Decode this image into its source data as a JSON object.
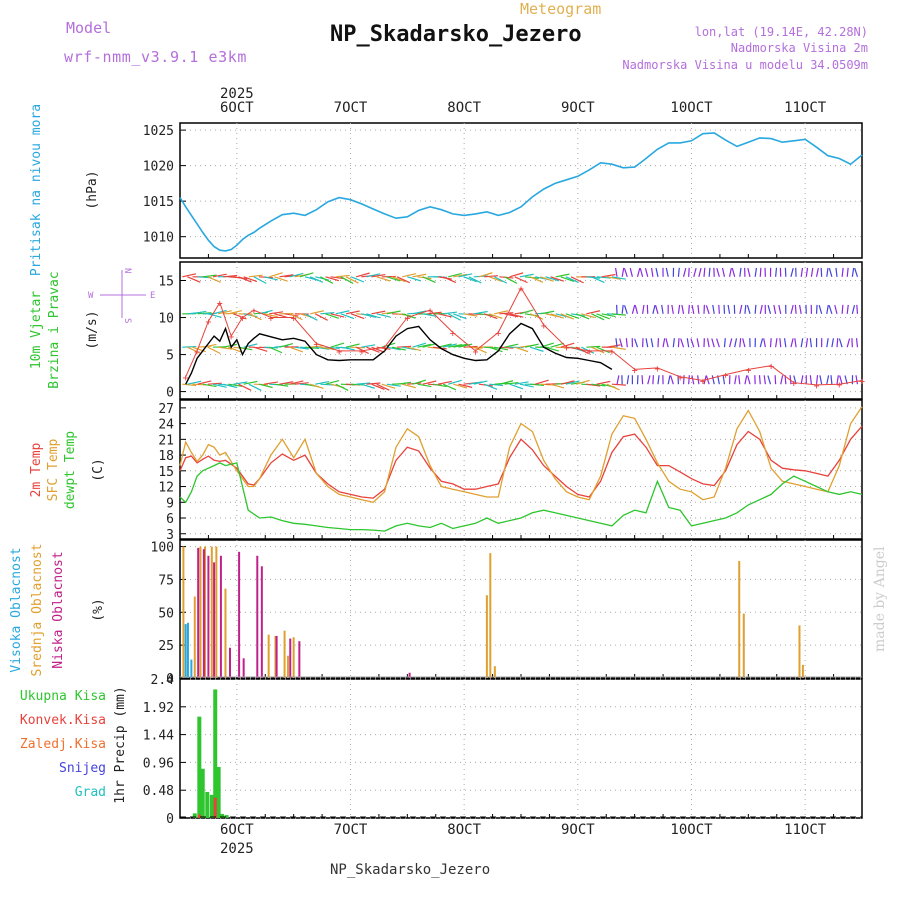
{
  "header": {
    "model_label": "Model",
    "model_name": "wrf-nmm_v3.9.1 e3km",
    "meteogram_label": "Meteogram",
    "station": "NP_Skadarsko_Jezero",
    "lonlat": "lon,lat (19.14E, 42.28N)",
    "elevation": "Nadmorska Visina 2m",
    "elevation_model": "Nadmorska Visina u modelu 34.0509m"
  },
  "footer": {
    "station": "NP_Skadarsko_Jezero",
    "credit": "made by Angel"
  },
  "colors": {
    "pressure": "#29a8e0",
    "temp2m": "#e8423c",
    "sfc": "#e0a030",
    "dewpt": "#2ec52e",
    "speed": "#000000",
    "high": "#29a8e0",
    "mid": "#e0a030",
    "low": "#c0208a",
    "total": "#2ec52e",
    "conv": "#e8423c",
    "snow": "#4444dd",
    "grad": "#20c0c0",
    "purple": "#b46fdc"
  },
  "chart_data": [
    {
      "type": "line",
      "panel": "pressure",
      "title": "Pritisak na nivou mora",
      "ylabel": "(hPa)",
      "ylim": [
        1007,
        1026
      ],
      "yticks": [
        1010,
        1015,
        1020,
        1025
      ],
      "x_range_days": [
        5.5,
        11.5
      ],
      "year": "2025",
      "dates": [
        {
          "x": 6,
          "label": "6OCT"
        },
        {
          "x": 7,
          "label": "7OCT"
        },
        {
          "x": 8,
          "label": "8OCT"
        },
        {
          "x": 9,
          "label": "9OCT"
        },
        {
          "x": 10,
          "label": "10OCT"
        },
        {
          "x": 11,
          "label": "11OCT"
        }
      ],
      "series": [
        {
          "name": "Pritisak",
          "x": [
            5.5,
            5.55,
            5.6,
            5.65,
            5.7,
            5.75,
            5.8,
            5.85,
            5.9,
            5.95,
            6.0,
            6.05,
            6.1,
            6.15,
            6.2,
            6.3,
            6.4,
            6.5,
            6.6,
            6.7,
            6.8,
            6.9,
            7.0,
            7.1,
            7.2,
            7.3,
            7.4,
            7.5,
            7.6,
            7.7,
            7.8,
            7.9,
            8.0,
            8.1,
            8.2,
            8.3,
            8.4,
            8.5,
            8.6,
            8.7,
            8.8,
            8.9,
            9.0,
            9.1,
            9.2,
            9.3,
            9.4,
            9.5,
            9.6,
            9.7,
            9.8,
            9.9,
            10.0,
            10.1,
            10.2,
            10.3,
            10.4,
            10.5,
            10.6,
            10.7,
            10.8,
            10.9,
            11.0,
            11.1,
            11.2,
            11.3,
            11.4,
            11.5
          ],
          "values": [
            1015.5,
            1014.2,
            1013.0,
            1011.8,
            1010.6,
            1009.5,
            1008.6,
            1008.1,
            1008.0,
            1008.2,
            1008.8,
            1009.6,
            1010.2,
            1010.6,
            1011.2,
            1012.2,
            1013.1,
            1013.3,
            1013.0,
            1013.8,
            1014.9,
            1015.5,
            1015.2,
            1014.6,
            1013.9,
            1013.2,
            1012.6,
            1012.8,
            1013.7,
            1014.2,
            1013.8,
            1013.2,
            1013.0,
            1013.2,
            1013.5,
            1013.0,
            1013.4,
            1014.2,
            1015.6,
            1016.7,
            1017.5,
            1018.0,
            1018.5,
            1019.4,
            1020.4,
            1020.2,
            1019.7,
            1019.8,
            1021.0,
            1022.3,
            1023.2,
            1023.2,
            1023.5,
            1024.5,
            1024.6,
            1023.6,
            1022.7,
            1023.3,
            1023.9,
            1023.8,
            1023.3,
            1023.5,
            1023.7,
            1022.6,
            1021.4,
            1021.0,
            1020.2,
            1021.5
          ]
        }
      ]
    },
    {
      "type": "line",
      "panel": "wind",
      "title": "10m Vjetar Brzina i Pravac",
      "ylabel": "(m/s)",
      "ylim": [
        -1,
        17.5
      ],
      "yticks": [
        0,
        5,
        10,
        15
      ],
      "compass": {
        "n": "N",
        "s": "S",
        "e": "E",
        "w": "W"
      },
      "series": [
        {
          "name": "speed",
          "x": [
            5.55,
            5.6,
            5.65,
            5.7,
            5.75,
            5.8,
            5.85,
            5.9,
            5.95,
            6.0,
            6.05,
            6.1,
            6.15,
            6.2,
            6.3,
            6.4,
            6.5,
            6.6,
            6.7,
            6.8,
            6.9,
            7.0,
            7.2,
            7.3,
            7.4,
            7.5,
            7.6,
            7.7,
            7.8,
            7.9,
            8.0,
            8.1,
            8.2,
            8.3,
            8.4,
            8.5,
            8.6,
            8.7,
            8.8,
            8.9,
            9.0,
            9.1,
            9.2,
            9.3
          ],
          "values": [
            1.0,
            2.5,
            4.5,
            5.5,
            6.5,
            7.5,
            6.8,
            8.5,
            6.0,
            7.0,
            5.0,
            6.5,
            7.2,
            7.8,
            7.4,
            7.0,
            7.2,
            6.8,
            5.0,
            4.3,
            4.2,
            4.3,
            4.3,
            5.5,
            7.5,
            8.5,
            8.8,
            7.0,
            5.8,
            5.0,
            4.5,
            4.2,
            4.3,
            5.5,
            7.8,
            9.2,
            8.5,
            6.0,
            5.2,
            4.6,
            4.5,
            4.2,
            3.9,
            3.0
          ]
        },
        {
          "name": "gust",
          "x": [
            5.55,
            5.65,
            5.75,
            5.85,
            5.95,
            6.05,
            6.15,
            6.3,
            6.5,
            6.7,
            6.9,
            7.1,
            7.3,
            7.5,
            7.7,
            7.9,
            8.1,
            8.3,
            8.5,
            8.7,
            8.9,
            9.1,
            9.3,
            9.5,
            9.7,
            9.9,
            10.1,
            10.3,
            10.5,
            10.7,
            10.9,
            11.1,
            11.3,
            11.5
          ],
          "values": [
            2.0,
            5.5,
            9.5,
            12.0,
            7.5,
            10.0,
            11.0,
            10.0,
            10.0,
            6.5,
            5.5,
            5.5,
            6.0,
            10.0,
            11.0,
            8.0,
            5.5,
            8.0,
            14.0,
            9.0,
            6.0,
            5.5,
            5.5,
            3.0,
            3.2,
            2.0,
            1.5,
            2.3,
            3.0,
            3.5,
            1.2,
            0.9,
            1.0,
            1.5
          ]
        }
      ]
    },
    {
      "type": "line",
      "panel": "temperature",
      "title": "2m Temp / SFC Temp / dewpt Temp",
      "labels": [
        "2m Temp",
        "SFC Temp",
        "dewpt Temp"
      ],
      "ylabel": "(C)",
      "ylim": [
        2,
        28.5
      ],
      "yticks": [
        3,
        6,
        9,
        12,
        15,
        18,
        21,
        24,
        27
      ],
      "series": [
        {
          "name": "2m Temp",
          "x": [
            5.5,
            5.55,
            5.6,
            5.65,
            5.7,
            5.75,
            5.8,
            5.85,
            5.9,
            6.0,
            6.1,
            6.15,
            6.2,
            6.3,
            6.4,
            6.5,
            6.6,
            6.7,
            6.8,
            6.9,
            7.0,
            7.1,
            7.2,
            7.3,
            7.4,
            7.5,
            7.6,
            7.7,
            7.8,
            7.9,
            8.0,
            8.1,
            8.2,
            8.3,
            8.4,
            8.5,
            8.6,
            8.7,
            8.8,
            8.9,
            9.0,
            9.1,
            9.2,
            9.3,
            9.4,
            9.5,
            9.6,
            9.7,
            9.8,
            9.9,
            10.0,
            10.1,
            10.2,
            10.3,
            10.4,
            10.5,
            10.6,
            10.7,
            10.8,
            10.9,
            11.0,
            11.1,
            11.2,
            11.3,
            11.4,
            11.5
          ],
          "values": [
            15,
            17.5,
            17.8,
            16.5,
            17.2,
            17.8,
            17.0,
            16.8,
            17.0,
            15.5,
            12.5,
            12.3,
            13.5,
            16.5,
            18.2,
            17.0,
            18.0,
            14.5,
            12.5,
            11.0,
            10.5,
            10.0,
            9.8,
            11.5,
            17.0,
            19.5,
            18.8,
            15.5,
            13.0,
            12.5,
            11.5,
            11.5,
            12.0,
            12.5,
            17.5,
            21.0,
            19.0,
            16.0,
            14.0,
            12.0,
            10.5,
            10.0,
            13.0,
            18.5,
            21.5,
            22.0,
            19.5,
            16.0,
            16.0,
            14.8,
            13.5,
            12.5,
            12.2,
            15.0,
            20.0,
            22.5,
            21.0,
            17.0,
            15.5,
            15.2,
            15.0,
            14.5,
            14.0,
            17.0,
            21.0,
            23.5
          ]
        },
        {
          "name": "SFC Temp",
          "x": [
            5.5,
            5.55,
            5.6,
            5.65,
            5.7,
            5.75,
            5.8,
            5.85,
            5.9,
            6.0,
            6.1,
            6.15,
            6.2,
            6.3,
            6.4,
            6.5,
            6.6,
            6.7,
            6.8,
            6.9,
            7.0,
            7.1,
            7.2,
            7.3,
            7.4,
            7.5,
            7.6,
            7.7,
            7.8,
            7.9,
            8.0,
            8.1,
            8.2,
            8.3,
            8.4,
            8.5,
            8.6,
            8.7,
            8.8,
            8.9,
            9.0,
            9.1,
            9.2,
            9.3,
            9.4,
            9.5,
            9.6,
            9.7,
            9.8,
            9.9,
            10.0,
            10.1,
            10.2,
            10.3,
            10.4,
            10.5,
            10.6,
            10.7,
            10.8,
            10.9,
            11.0,
            11.1,
            11.2,
            11.3,
            11.4,
            11.5
          ],
          "values": [
            16,
            20.5,
            18.5,
            16.8,
            18.0,
            20.0,
            19.5,
            18.0,
            18.5,
            15.0,
            12.0,
            12.0,
            13.5,
            18.0,
            21.0,
            17.5,
            21.0,
            14.5,
            12.0,
            10.5,
            10.0,
            9.5,
            9.0,
            11.0,
            19.5,
            23.0,
            21.5,
            16.0,
            12.0,
            11.5,
            11.0,
            10.5,
            10.0,
            10.0,
            19.5,
            24.0,
            22.5,
            17.0,
            13.5,
            11.0,
            10.0,
            9.5,
            14.0,
            22.0,
            25.5,
            25.0,
            21.0,
            16.5,
            13.0,
            11.5,
            11.0,
            9.5,
            10.0,
            15.5,
            23.0,
            26.5,
            22.5,
            15.5,
            13.0,
            12.5,
            12.0,
            11.5,
            11.0,
            16.0,
            24.0,
            27.2
          ]
        },
        {
          "name": "dewpt Temp",
          "x": [
            5.5,
            5.55,
            5.6,
            5.65,
            5.7,
            5.75,
            5.8,
            5.85,
            5.9,
            6.0,
            6.1,
            6.2,
            6.3,
            6.4,
            6.5,
            6.6,
            6.7,
            6.8,
            6.9,
            7.0,
            7.1,
            7.2,
            7.3,
            7.4,
            7.5,
            7.6,
            7.7,
            7.8,
            7.9,
            8.0,
            8.1,
            8.2,
            8.3,
            8.4,
            8.5,
            8.6,
            8.7,
            8.8,
            8.9,
            9.0,
            9.1,
            9.2,
            9.3,
            9.4,
            9.5,
            9.6,
            9.7,
            9.8,
            9.9,
            10.0,
            10.1,
            10.2,
            10.3,
            10.4,
            10.5,
            10.6,
            10.7,
            10.8,
            10.9,
            11.0,
            11.1,
            11.2,
            11.3,
            11.4,
            11.5
          ],
          "values": [
            10,
            9.0,
            11.0,
            14.0,
            15.0,
            15.5,
            16.0,
            16.5,
            16.0,
            16.5,
            7.5,
            6.0,
            6.2,
            5.5,
            5.0,
            4.8,
            4.5,
            4.2,
            4.0,
            3.8,
            3.8,
            3.7,
            3.5,
            4.5,
            5.0,
            4.5,
            4.2,
            5.0,
            4.0,
            4.5,
            5.0,
            6.0,
            5.0,
            5.5,
            6.0,
            7.0,
            7.5,
            7.0,
            6.5,
            6.0,
            5.5,
            5.0,
            4.5,
            6.5,
            7.5,
            7.0,
            13.0,
            8.0,
            7.5,
            4.5,
            5.0,
            5.5,
            6.0,
            7.0,
            8.5,
            9.5,
            10.5,
            12.5,
            14.0,
            13.0,
            12.0,
            11.0,
            10.5,
            11.0,
            10.5
          ]
        }
      ]
    },
    {
      "type": "bar",
      "panel": "clouds",
      "labels": [
        "Visoka Oblacnost",
        "Srednja Oblacnost",
        "Niska Oblacnost"
      ],
      "ylabel": "(%)",
      "ylim": [
        0,
        105
      ],
      "yticks": [
        0,
        25,
        50,
        75,
        100
      ],
      "series": [
        {
          "name": "Visoka",
          "x": [
            5.55,
            5.57,
            5.6
          ],
          "values": [
            41,
            42,
            14
          ]
        },
        {
          "name": "Srednja",
          "x": [
            5.53,
            5.63,
            5.68,
            5.72,
            5.78,
            5.82,
            5.9,
            6.28,
            6.34,
            6.42,
            6.45,
            6.5,
            8.2,
            8.23,
            8.27,
            10.42,
            10.46,
            10.95,
            10.98
          ],
          "values": [
            100,
            62,
            100,
            100,
            100,
            100,
            68,
            33,
            32,
            36,
            17,
            31,
            63,
            95,
            9,
            89,
            49,
            40,
            10
          ]
        },
        {
          "name": "Niska",
          "x": [
            5.66,
            5.71,
            5.75,
            5.8,
            5.86,
            5.94,
            6.02,
            6.06,
            6.18,
            6.22,
            6.35,
            6.47,
            6.55,
            7.52
          ],
          "values": [
            99,
            98,
            93,
            88,
            93,
            23,
            96,
            15,
            93,
            85,
            32,
            30,
            28,
            4
          ]
        }
      ]
    },
    {
      "type": "bar",
      "panel": "precip",
      "labels": [
        "Ukupna Kisa",
        "Konvek.Kisa",
        "Zaledj.Kisa",
        "Snijeg",
        "Grad"
      ],
      "ylabel": "1hr Precip (mm)",
      "ylim": [
        0,
        2.4
      ],
      "yticks": [
        "0",
        "0.48",
        "0.96",
        "1.44",
        "1.92",
        "2.4"
      ],
      "series": [
        {
          "name": "Ukupna Kisa",
          "x": [
            5.63,
            5.67,
            5.7,
            5.74,
            5.78,
            5.81,
            5.84,
            5.87,
            5.91
          ],
          "values": [
            0.08,
            1.75,
            0.85,
            0.45,
            0.4,
            2.22,
            0.88,
            0.07,
            0.05
          ]
        },
        {
          "name": "Konvek.Kisa",
          "x": [
            5.67,
            5.81
          ],
          "values": [
            0.06,
            0.35
          ]
        }
      ]
    }
  ]
}
